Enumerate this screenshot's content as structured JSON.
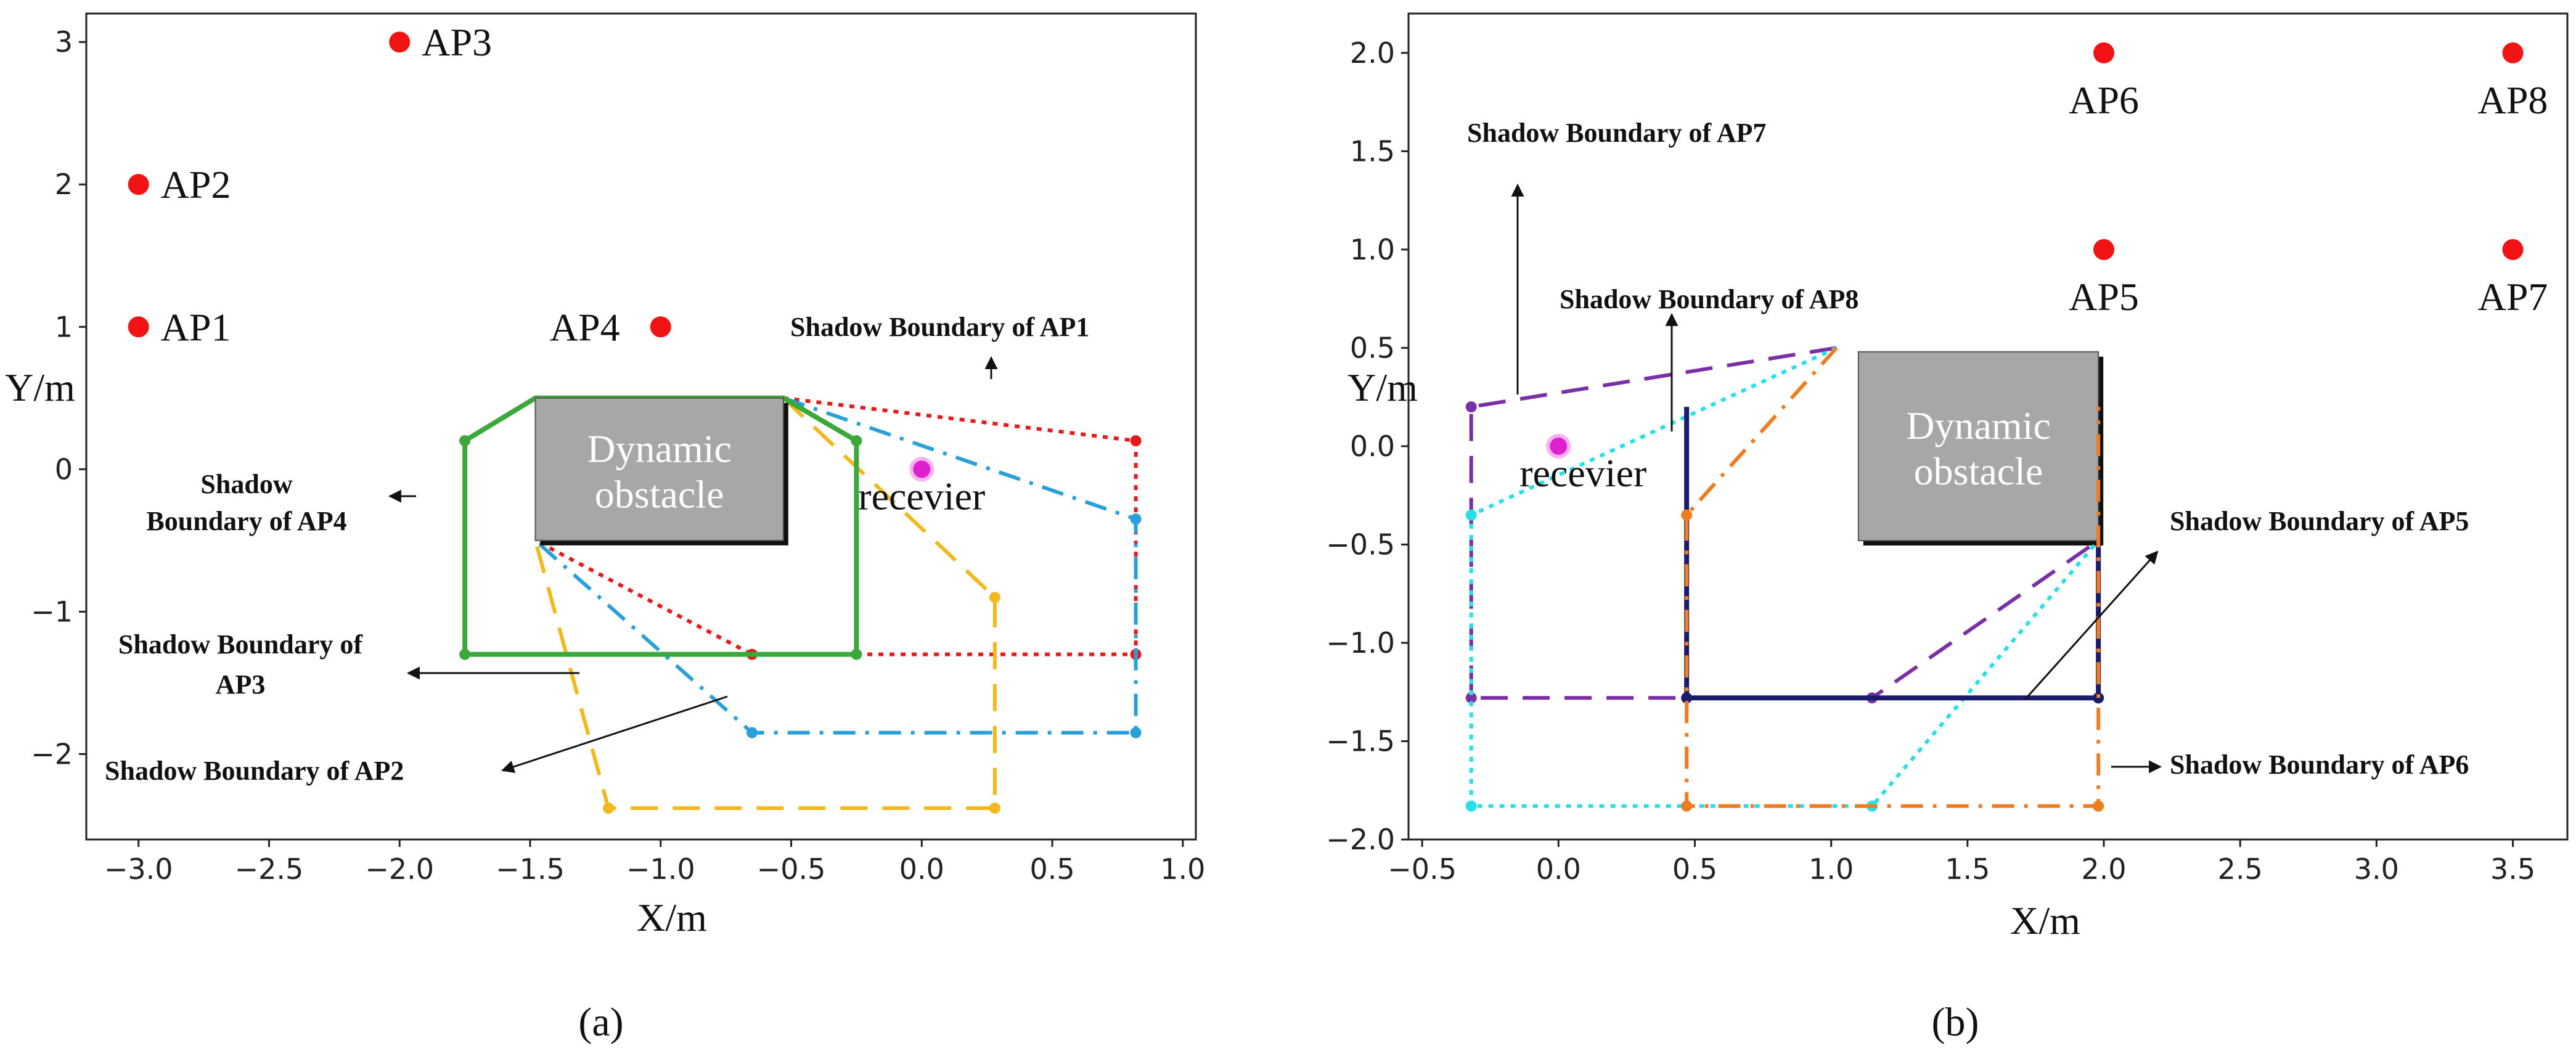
{
  "chart_data": [
    {
      "panel": "a",
      "type": "scatter",
      "subcaption": "(a)",
      "xlabel": "X/m",
      "ylabel": "Y/m",
      "xlim": [
        -3.2,
        1.05
      ],
      "ylim": [
        -2.6,
        3.2
      ],
      "xticks": [
        -3.0,
        -2.5,
        -2.0,
        -1.5,
        -1.0,
        -0.5,
        0.0,
        0.5,
        1.0
      ],
      "xtick_labels": [
        "−3.0",
        "−2.5",
        "−2.0",
        "−1.5",
        "−1.0",
        "−0.5",
        "0.0",
        "0.5",
        "1.0"
      ],
      "yticks": [
        3,
        2,
        1,
        0,
        -1,
        -2
      ],
      "ytick_labels": [
        "3",
        "2",
        "1",
        "0",
        "−1",
        "−2"
      ],
      "aps": [
        {
          "label": "AP1",
          "x": -3.0,
          "y": 1.0,
          "label_side": "right"
        },
        {
          "label": "AP2",
          "x": -3.0,
          "y": 2.0,
          "label_side": "right"
        },
        {
          "label": "AP3",
          "x": -2.0,
          "y": 3.0,
          "label_side": "right"
        },
        {
          "label": "AP4",
          "x": -1.0,
          "y": 1.0,
          "label_side": "left"
        }
      ],
      "receiver": {
        "label": "recevier",
        "x": 0.0,
        "y": 0.0
      },
      "obstacle": {
        "label_lines": [
          "Dynamic",
          "obstacle"
        ],
        "x0": -1.48,
        "x1": -0.53,
        "y0": -0.5,
        "y1": 0.5
      },
      "boundaries": [
        {
          "name": "AP1",
          "color": "#e8191b",
          "style": "dotted",
          "closed": false,
          "points": [
            [
              -0.53,
              0.5
            ],
            [
              0.82,
              0.2
            ],
            [
              0.82,
              -1.3
            ],
            [
              -0.65,
              -1.3
            ],
            [
              -1.48,
              -0.5
            ]
          ],
          "vertex_colors": [
            "#e8191b",
            "#1f6fd1",
            "#e8191b"
          ]
        },
        {
          "name": "AP2",
          "color": "#2aa0d8",
          "style": "dashdot",
          "closed": false,
          "points": [
            [
              -0.53,
              0.5
            ],
            [
              0.82,
              -0.35
            ],
            [
              0.82,
              -1.85
            ],
            [
              -0.65,
              -1.85
            ],
            [
              -1.48,
              -0.5
            ]
          ]
        },
        {
          "name": "AP3",
          "color": "#f5b81a",
          "style": "dashed",
          "closed": false,
          "points": [
            [
              -0.53,
              0.5
            ],
            [
              0.28,
              -0.9
            ],
            [
              0.28,
              -2.38
            ],
            [
              -1.2,
              -2.38
            ],
            [
              -1.48,
              -0.5
            ]
          ]
        },
        {
          "name": "AP4",
          "color": "#3aa83a",
          "style": "solid",
          "closed": true,
          "points": [
            [
              -1.48,
              0.5
            ],
            [
              -1.75,
              0.2
            ],
            [
              -1.75,
              -1.3
            ],
            [
              -0.25,
              -1.3
            ],
            [
              -0.25,
              0.2
            ],
            [
              -0.53,
              0.5
            ]
          ]
        }
      ],
      "annotations": [
        {
          "lines": [
            "Shadow Boundary of  AP1"
          ],
          "arrow": "up"
        },
        {
          "lines": [
            "Shadow",
            "Boundary of  AP4"
          ],
          "arrow": "right-to-left"
        },
        {
          "lines": [
            "Shadow Boundary of",
            "AP3"
          ],
          "arrow": "right-to-left"
        },
        {
          "lines": [
            "Shadow Boundary of  AP2"
          ],
          "arrow": "diagonal"
        }
      ]
    },
    {
      "panel": "b",
      "type": "scatter",
      "subcaption": "(b)",
      "xlabel": "X/m",
      "ylabel": "Y/m",
      "xlim": [
        -0.55,
        3.7
      ],
      "ylim": [
        -2.0,
        2.2
      ],
      "xticks": [
        -0.5,
        0.0,
        0.5,
        1.0,
        1.5,
        2.0,
        2.5,
        3.0,
        3.5
      ],
      "xtick_labels": [
        "−0.5",
        "0.0",
        "0.5",
        "1.0",
        "1.5",
        "2.0",
        "2.5",
        "3.0",
        "3.5"
      ],
      "yticks": [
        2.0,
        1.5,
        1.0,
        0.5,
        0.0,
        -0.5,
        -1.0,
        -1.5,
        -2.0
      ],
      "ytick_labels": [
        "2.0",
        "1.5",
        "1.0",
        "0.5",
        "0.0",
        "−0.5",
        "−1.0",
        "−1.5",
        "−2.0"
      ],
      "aps": [
        {
          "label": "AP6",
          "x": 2.0,
          "y": 2.0,
          "label_side": "below"
        },
        {
          "label": "AP8",
          "x": 3.5,
          "y": 2.0,
          "label_side": "below"
        },
        {
          "label": "AP5",
          "x": 2.0,
          "y": 1.0,
          "label_side": "below"
        },
        {
          "label": "AP7",
          "x": 3.5,
          "y": 1.0,
          "label_side": "below"
        }
      ],
      "receiver": {
        "label": "recevier",
        "x": 0.0,
        "y": 0.0
      },
      "obstacle": {
        "label_lines": [
          "Dynamic",
          "obstacle"
        ],
        "x0": 1.1,
        "x1": 1.98,
        "y0": -0.48,
        "y1": 0.48
      },
      "boundaries": [
        {
          "name": "AP7",
          "color": "#7a2fa6",
          "style": "dashed",
          "closed": false,
          "points": [
            [
              1.02,
              0.5
            ],
            [
              -0.32,
              0.2
            ],
            [
              -0.32,
              -1.28
            ],
            [
              1.15,
              -1.28
            ],
            [
              1.98,
              -0.48
            ]
          ]
        },
        {
          "name": "AP8",
          "color": "#26e0e8",
          "style": "dotted",
          "closed": false,
          "points": [
            [
              1.02,
              0.5
            ],
            [
              -0.32,
              -0.35
            ],
            [
              -0.32,
              -1.83
            ],
            [
              1.15,
              -1.83
            ],
            [
              1.98,
              -0.48
            ]
          ]
        },
        {
          "name": "AP5",
          "color": "#1a1a6e",
          "style": "solid",
          "closed": false,
          "points": [
            [
              0.47,
              0.2
            ],
            [
              0.47,
              -1.28
            ],
            [
              1.98,
              -1.28
            ],
            [
              1.98,
              -0.48
            ]
          ]
        },
        {
          "name": "AP6",
          "color": "#f07c22",
          "style": "dashdot",
          "closed": false,
          "points": [
            [
              1.02,
              0.5
            ],
            [
              0.47,
              -0.35
            ],
            [
              0.47,
              -1.83
            ],
            [
              1.98,
              -1.83
            ],
            [
              1.98,
              0.2
            ]
          ]
        }
      ],
      "annotations": [
        {
          "lines": [
            "Shadow Boundary of  AP7"
          ],
          "arrow": "up"
        },
        {
          "lines": [
            "Shadow Boundary of  AP8"
          ],
          "arrow": "up"
        },
        {
          "lines": [
            "Shadow Boundary of  AP5"
          ],
          "arrow": "diagonal"
        },
        {
          "lines": [
            "Shadow Boundary of  AP6"
          ],
          "arrow": "right"
        }
      ]
    }
  ]
}
